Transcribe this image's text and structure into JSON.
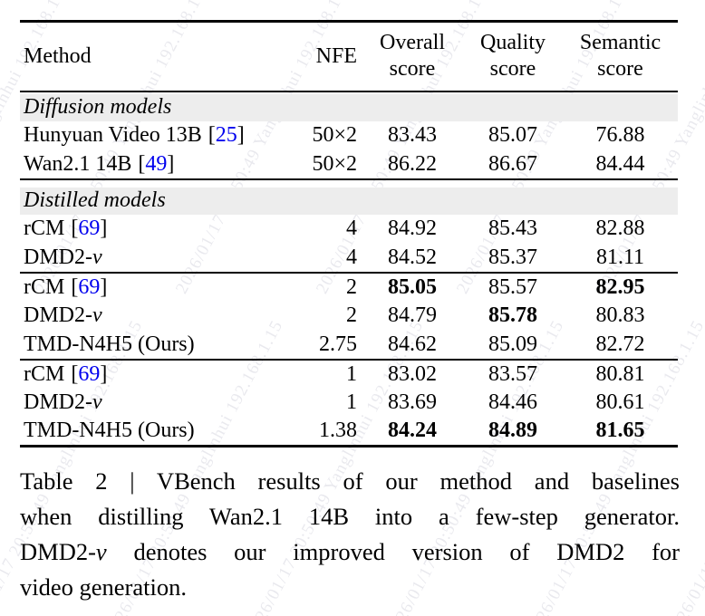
{
  "watermark": {
    "text": "2026/01/17 20:50:49 Yanglinhui 192.168.1.15"
  },
  "table": {
    "headers": {
      "method": "Method",
      "nfe": "NFE",
      "overall1": "Overall",
      "overall2": "score",
      "quality1": "Quality",
      "quality2": "score",
      "semantic1": "Semantic",
      "semantic2": "score"
    },
    "punct": {
      "open": "[",
      "close": "]"
    },
    "sections": [
      "Diffusion models",
      "Distilled models"
    ],
    "rows": [
      {
        "method": "Hunyuan Video 13B",
        "cite": "25",
        "nfe": "50×2",
        "overall": "83.43",
        "quality": "85.07",
        "semantic": "76.88"
      },
      {
        "method": "Wan2.1 14B",
        "cite": "49",
        "nfe": "50×2",
        "overall": "86.22",
        "quality": "86.67",
        "semantic": "84.44"
      },
      {
        "method": "rCM",
        "cite": "69",
        "nfe": "4",
        "overall": "84.92",
        "quality": "85.43",
        "semantic": "82.88"
      },
      {
        "method_pre": "DMD2-",
        "method_var": "v",
        "nfe": "4",
        "overall": "84.52",
        "quality": "85.37",
        "semantic": "81.11"
      },
      {
        "method": "rCM",
        "cite": "69",
        "nfe": "2",
        "overall": "85.05",
        "quality": "85.57",
        "semantic": "82.95"
      },
      {
        "method_pre": "DMD2-",
        "method_var": "v",
        "nfe": "2",
        "overall": "84.79",
        "quality": "85.78",
        "semantic": "80.83"
      },
      {
        "method": "TMD-N4H5 (Ours)",
        "nfe": "2.75",
        "overall": "84.62",
        "quality": "85.09",
        "semantic": "82.72"
      },
      {
        "method": "rCM",
        "cite": "69",
        "nfe": "1",
        "overall": "83.02",
        "quality": "83.57",
        "semantic": "80.81"
      },
      {
        "method_pre": "DMD2-",
        "method_var": "v",
        "nfe": "1",
        "overall": "83.69",
        "quality": "84.46",
        "semantic": "80.61"
      },
      {
        "method": "TMD-N4H5 (Ours)",
        "nfe": "1.38",
        "overall": "84.24",
        "quality": "84.89",
        "semantic": "81.65"
      }
    ]
  },
  "caption": {
    "line1": "Table 2 | VBench results of our method and baselines",
    "line2": "when distilling Wan2.1 14B into a few-step generator.",
    "line3_pre": "DMD2-",
    "line3_var": "v",
    "line3_post": " denotes our improved version of DMD2 for",
    "line4": "video generation."
  }
}
